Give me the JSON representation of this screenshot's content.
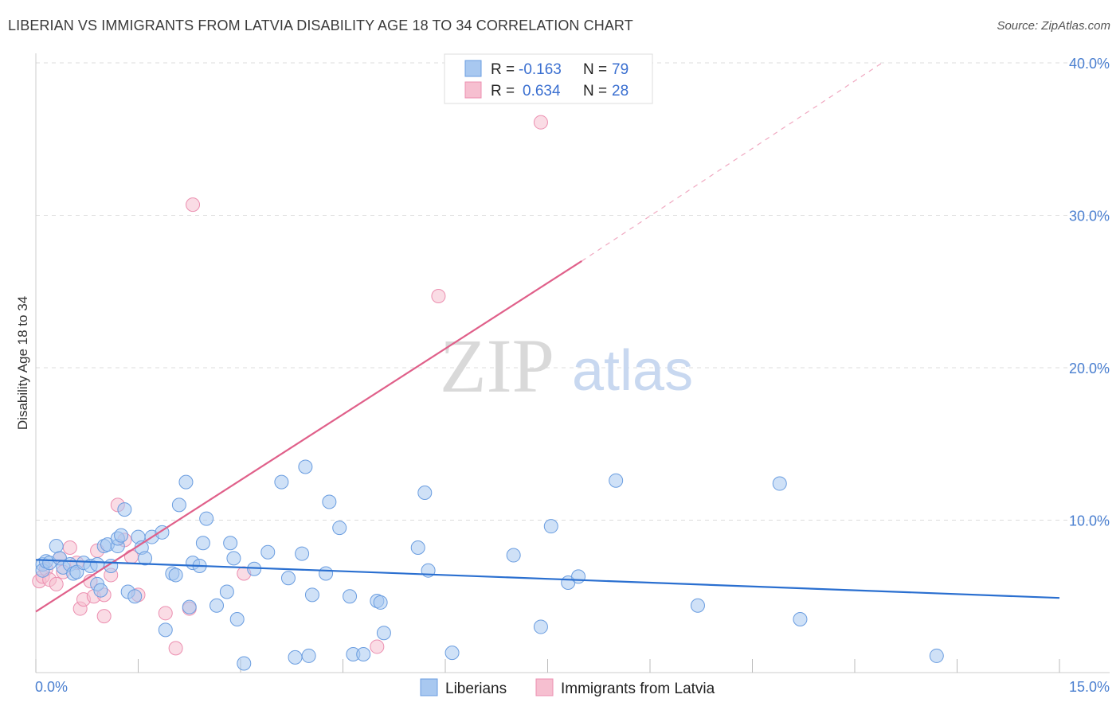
{
  "header": {
    "title": "LIBERIAN VS IMMIGRANTS FROM LATVIA DISABILITY AGE 18 TO 34 CORRELATION CHART",
    "source": "Source: ZipAtlas.com"
  },
  "watermark": {
    "zip": "ZIP",
    "atlas": "atlas"
  },
  "legend_top": {
    "row1": {
      "r_label": "R =",
      "r_value": "-0.163",
      "n_label": "N =",
      "n_value": "79"
    },
    "row2": {
      "r_label": "R =",
      "r_value": "0.634",
      "n_label": "N =",
      "n_value": "28"
    }
  },
  "legend_bottom": {
    "series1": "Liberians",
    "series2": "Immigrants from Latvia"
  },
  "colors": {
    "blue_fill": "#a8c8f0",
    "blue_stroke": "#6a9de0",
    "blue_line": "#2a6fd0",
    "pink_fill": "#f6bfd0",
    "pink_stroke": "#ec8fb0",
    "pink_line": "#e0608a",
    "grid": "#dddddd",
    "tick_label": "#4a7fd0"
  },
  "chart_data": {
    "type": "scatter",
    "title": "LIBERIAN VS IMMIGRANTS FROM LATVIA DISABILITY AGE 18 TO 34 CORRELATION CHART",
    "xlabel": "",
    "ylabel": "Disability Age 18 to 34",
    "xlim": [
      0,
      15
    ],
    "ylim": [
      0,
      40
    ],
    "x_tick_labels": [
      "0.0%",
      "15.0%"
    ],
    "y_ticks": [
      10,
      20,
      30,
      40
    ],
    "y_tick_labels": [
      "10.0%",
      "20.0%",
      "30.0%",
      "40.0%"
    ],
    "grid": true,
    "legend_position": "top-center",
    "series": [
      {
        "name": "Liberians",
        "r": -0.163,
        "n": 79,
        "trend": {
          "x": [
            0,
            15
          ],
          "y": [
            7.4,
            4.9
          ]
        },
        "points": [
          [
            0.1,
            7.1
          ],
          [
            0.1,
            6.7
          ],
          [
            0.15,
            7.3
          ],
          [
            0.2,
            7.2
          ],
          [
            0.3,
            8.3
          ],
          [
            0.35,
            7.5
          ],
          [
            0.4,
            6.9
          ],
          [
            0.5,
            7.1
          ],
          [
            0.55,
            6.5
          ],
          [
            0.6,
            6.6
          ],
          [
            0.7,
            7.2
          ],
          [
            0.8,
            7.0
          ],
          [
            0.9,
            7.1
          ],
          [
            0.9,
            5.8
          ],
          [
            0.95,
            5.4
          ],
          [
            1.0,
            8.3
          ],
          [
            1.05,
            8.4
          ],
          [
            1.1,
            7.0
          ],
          [
            1.2,
            8.3
          ],
          [
            1.2,
            8.8
          ],
          [
            1.25,
            9.0
          ],
          [
            1.3,
            10.7
          ],
          [
            1.35,
            5.3
          ],
          [
            1.45,
            5.0
          ],
          [
            1.5,
            8.9
          ],
          [
            1.55,
            8.2
          ],
          [
            1.6,
            7.5
          ],
          [
            1.7,
            8.9
          ],
          [
            1.85,
            9.2
          ],
          [
            1.9,
            2.8
          ],
          [
            2.0,
            6.5
          ],
          [
            2.05,
            6.4
          ],
          [
            2.1,
            11.0
          ],
          [
            2.2,
            12.5
          ],
          [
            2.25,
            4.3
          ],
          [
            2.3,
            7.2
          ],
          [
            2.4,
            7.0
          ],
          [
            2.45,
            8.5
          ],
          [
            2.5,
            10.1
          ],
          [
            2.65,
            4.4
          ],
          [
            2.8,
            5.3
          ],
          [
            2.85,
            8.5
          ],
          [
            2.9,
            7.5
          ],
          [
            2.95,
            3.5
          ],
          [
            3.05,
            0.6
          ],
          [
            3.2,
            6.8
          ],
          [
            3.4,
            7.9
          ],
          [
            3.6,
            12.5
          ],
          [
            3.7,
            6.2
          ],
          [
            3.8,
            1.0
          ],
          [
            3.9,
            7.8
          ],
          [
            3.95,
            13.5
          ],
          [
            4.0,
            1.1
          ],
          [
            4.05,
            5.1
          ],
          [
            4.25,
            6.5
          ],
          [
            4.3,
            11.2
          ],
          [
            4.45,
            9.5
          ],
          [
            4.6,
            5.0
          ],
          [
            4.65,
            1.2
          ],
          [
            4.8,
            1.2
          ],
          [
            5.0,
            4.7
          ],
          [
            5.05,
            4.6
          ],
          [
            5.1,
            2.6
          ],
          [
            5.6,
            8.2
          ],
          [
            5.7,
            11.8
          ],
          [
            5.75,
            6.7
          ],
          [
            6.1,
            1.3
          ],
          [
            7.0,
            7.7
          ],
          [
            7.4,
            3.0
          ],
          [
            7.55,
            9.6
          ],
          [
            7.8,
            5.9
          ],
          [
            7.95,
            6.3
          ],
          [
            8.5,
            12.6
          ],
          [
            9.7,
            4.4
          ],
          [
            10.9,
            12.4
          ],
          [
            11.2,
            3.5
          ],
          [
            13.2,
            1.1
          ]
        ]
      },
      {
        "name": "Immigrants from Latvia",
        "r": 0.634,
        "n": 28,
        "trend": {
          "x": [
            0,
            8.0
          ],
          "y": [
            4.0,
            27.0
          ],
          "dashed_x": [
            8.0,
            12.4
          ],
          "dashed_y": [
            27.0,
            40.0
          ]
        },
        "points": [
          [
            0.05,
            6.0
          ],
          [
            0.1,
            6.3
          ],
          [
            0.15,
            6.8
          ],
          [
            0.2,
            6.1
          ],
          [
            0.3,
            5.8
          ],
          [
            0.35,
            7.5
          ],
          [
            0.4,
            6.6
          ],
          [
            0.5,
            8.2
          ],
          [
            0.6,
            7.2
          ],
          [
            0.65,
            4.2
          ],
          [
            0.7,
            4.8
          ],
          [
            0.8,
            6.0
          ],
          [
            0.85,
            5.0
          ],
          [
            0.9,
            8.0
          ],
          [
            1.0,
            5.1
          ],
          [
            1.0,
            3.7
          ],
          [
            1.1,
            6.4
          ],
          [
            1.2,
            11.0
          ],
          [
            1.3,
            8.7
          ],
          [
            1.4,
            7.6
          ],
          [
            1.5,
            5.1
          ],
          [
            1.9,
            3.9
          ],
          [
            2.05,
            1.6
          ],
          [
            2.25,
            4.2
          ],
          [
            2.3,
            30.7
          ],
          [
            3.05,
            6.5
          ],
          [
            5.0,
            1.7
          ],
          [
            5.9,
            24.7
          ],
          [
            7.4,
            36.1
          ]
        ]
      }
    ]
  }
}
